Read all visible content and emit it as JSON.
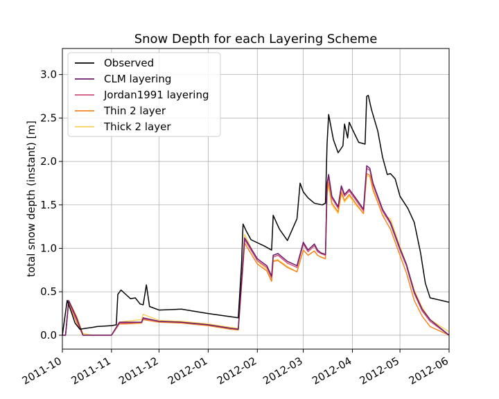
{
  "chart_data": {
    "type": "line",
    "title": "Snow Depth for each Layering Scheme",
    "xlabel": "",
    "ylabel": "total snow depth (instant) [m]",
    "xlim": [
      "2011-10-01",
      "2012-06-01"
    ],
    "ylim": [
      -0.16,
      3.3
    ],
    "x_ticks": [
      "2011-10",
      "2011-11",
      "2011-12",
      "2012-01",
      "2012-02",
      "2012-03",
      "2012-04",
      "2012-05",
      "2012-06"
    ],
    "y_ticks": [
      0.0,
      0.5,
      1.0,
      1.5,
      2.0,
      2.5,
      3.0
    ],
    "y_tick_labels": [
      "0.0",
      "0.5",
      "1.0",
      "1.5",
      "2.0",
      "2.5",
      "3.0"
    ],
    "grid": true,
    "legend_position": "upper-left",
    "series": [
      {
        "name": "Observed",
        "color": "#000000",
        "x": [
          "2011-10-01",
          "2011-10-04",
          "2011-10-07",
          "2011-10-09",
          "2011-10-12",
          "2011-10-16",
          "2011-10-20",
          "2011-10-23",
          "2011-11-01",
          "2011-11-04",
          "2011-11-05",
          "2011-11-07",
          "2011-11-10",
          "2011-11-13",
          "2011-11-16",
          "2011-11-19",
          "2011-11-21",
          "2011-11-23",
          "2011-11-25",
          "2011-12-01",
          "2011-12-15",
          "2012-01-01",
          "2012-01-20",
          "2012-01-22",
          "2012-01-23",
          "2012-01-25",
          "2012-01-28",
          "2012-02-05",
          "2012-02-10",
          "2012-02-11",
          "2012-02-13",
          "2012-02-15",
          "2012-02-20",
          "2012-02-26",
          "2012-02-28",
          "2012-03-01",
          "2012-03-04",
          "2012-03-08",
          "2012-03-13",
          "2012-03-15",
          "2012-03-16",
          "2012-03-17",
          "2012-03-20",
          "2012-03-23",
          "2012-03-26",
          "2012-03-27",
          "2012-03-29",
          "2012-03-30",
          "2012-04-01",
          "2012-04-05",
          "2012-04-09",
          "2012-04-10",
          "2012-04-11",
          "2012-04-13",
          "2012-04-17",
          "2012-04-20",
          "2012-04-23",
          "2012-04-25",
          "2012-04-28",
          "2012-05-01",
          "2012-05-06",
          "2012-05-10",
          "2012-05-14",
          "2012-05-17",
          "2012-05-20",
          "2012-06-01"
        ],
        "values": [
          0.0,
          0.4,
          0.25,
          0.14,
          0.07,
          0.08,
          0.09,
          0.1,
          0.11,
          0.12,
          0.47,
          0.52,
          0.47,
          0.42,
          0.43,
          0.36,
          0.35,
          0.58,
          0.33,
          0.29,
          0.3,
          0.25,
          0.2,
          0.8,
          1.28,
          1.2,
          1.1,
          1.03,
          0.98,
          1.38,
          1.3,
          1.22,
          1.09,
          1.34,
          1.75,
          1.65,
          1.58,
          1.52,
          1.5,
          1.52,
          2.2,
          2.54,
          2.25,
          2.1,
          2.18,
          2.43,
          2.27,
          2.45,
          2.37,
          2.22,
          2.2,
          2.75,
          2.76,
          2.6,
          2.35,
          2.05,
          1.85,
          1.86,
          1.8,
          1.6,
          1.46,
          1.3,
          0.95,
          0.6,
          0.43,
          0.38
        ]
      },
      {
        "name": "CLM layering",
        "color": "#6a1a6a",
        "x": [
          "2011-10-01",
          "2011-10-03",
          "2011-10-05",
          "2011-10-10",
          "2011-10-14",
          "2011-10-20",
          "2011-11-01",
          "2011-11-06",
          "2011-11-10",
          "2011-11-20",
          "2011-11-21",
          "2011-12-01",
          "2011-12-15",
          "2012-01-01",
          "2012-01-15",
          "2012-01-20",
          "2012-01-22",
          "2012-01-24",
          "2012-02-01",
          "2012-02-07",
          "2012-02-10",
          "2012-02-11",
          "2012-02-14",
          "2012-02-20",
          "2012-02-26",
          "2012-03-01",
          "2012-03-04",
          "2012-03-08",
          "2012-03-10",
          "2012-03-12",
          "2012-03-15",
          "2012-03-16",
          "2012-03-17",
          "2012-03-19",
          "2012-03-23",
          "2012-03-25",
          "2012-03-27",
          "2012-03-30",
          "2012-04-03",
          "2012-04-08",
          "2012-04-10",
          "2012-04-12",
          "2012-04-14",
          "2012-04-18",
          "2012-04-20",
          "2012-04-25",
          "2012-05-01",
          "2012-05-05",
          "2012-05-10",
          "2012-05-15",
          "2012-05-20",
          "2012-06-01"
        ],
        "values": [
          0.0,
          0.0,
          0.4,
          0.2,
          0.0,
          0.0,
          0.0,
          0.15,
          0.15,
          0.15,
          0.2,
          0.16,
          0.15,
          0.12,
          0.08,
          0.07,
          0.6,
          1.12,
          0.88,
          0.8,
          0.68,
          0.92,
          0.94,
          0.85,
          0.8,
          1.07,
          0.98,
          1.05,
          0.98,
          0.95,
          0.93,
          1.75,
          1.85,
          1.6,
          1.48,
          1.72,
          1.62,
          1.68,
          1.58,
          1.45,
          1.95,
          1.92,
          1.75,
          1.55,
          1.45,
          1.3,
          1.0,
          0.82,
          0.5,
          0.3,
          0.18,
          0.0
        ]
      },
      {
        "name": "Jordan1991 layering",
        "color": "#d1507a",
        "x": [
          "2011-10-01",
          "2011-10-03",
          "2011-10-05",
          "2011-10-10",
          "2011-10-14",
          "2011-10-20",
          "2011-11-01",
          "2011-11-06",
          "2011-11-10",
          "2011-11-20",
          "2011-11-21",
          "2011-12-01",
          "2011-12-15",
          "2012-01-01",
          "2012-01-15",
          "2012-01-20",
          "2012-01-22",
          "2012-01-24",
          "2012-02-01",
          "2012-02-07",
          "2012-02-10",
          "2012-02-11",
          "2012-02-14",
          "2012-02-20",
          "2012-02-26",
          "2012-03-01",
          "2012-03-04",
          "2012-03-08",
          "2012-03-10",
          "2012-03-12",
          "2012-03-15",
          "2012-03-16",
          "2012-03-17",
          "2012-03-19",
          "2012-03-23",
          "2012-03-25",
          "2012-03-27",
          "2012-03-30",
          "2012-04-03",
          "2012-04-08",
          "2012-04-10",
          "2012-04-12",
          "2012-04-14",
          "2012-04-18",
          "2012-04-20",
          "2012-04-25",
          "2012-05-01",
          "2012-05-05",
          "2012-05-10",
          "2012-05-15",
          "2012-05-20",
          "2012-06-01"
        ],
        "values": [
          0.0,
          0.0,
          0.39,
          0.18,
          0.0,
          0.0,
          0.0,
          0.14,
          0.14,
          0.15,
          0.19,
          0.16,
          0.15,
          0.12,
          0.08,
          0.07,
          0.58,
          1.1,
          0.86,
          0.78,
          0.66,
          0.9,
          0.92,
          0.83,
          0.78,
          1.05,
          0.96,
          1.03,
          0.96,
          0.94,
          0.92,
          1.72,
          1.82,
          1.58,
          1.46,
          1.7,
          1.6,
          1.66,
          1.56,
          1.43,
          1.92,
          1.9,
          1.73,
          1.53,
          1.43,
          1.28,
          0.98,
          0.8,
          0.48,
          0.28,
          0.16,
          0.0
        ]
      },
      {
        "name": "Thin 2 layer",
        "color": "#f28522",
        "x": [
          "2011-10-01",
          "2011-10-03",
          "2011-10-05",
          "2011-10-10",
          "2011-10-14",
          "2011-10-20",
          "2011-11-01",
          "2011-11-06",
          "2011-11-10",
          "2011-11-20",
          "2011-11-21",
          "2011-12-01",
          "2011-12-15",
          "2012-01-01",
          "2012-01-15",
          "2012-01-20",
          "2012-01-22",
          "2012-01-24",
          "2012-02-01",
          "2012-02-07",
          "2012-02-10",
          "2012-02-11",
          "2012-02-14",
          "2012-02-20",
          "2012-02-26",
          "2012-03-01",
          "2012-03-04",
          "2012-03-08",
          "2012-03-10",
          "2012-03-12",
          "2012-03-15",
          "2012-03-16",
          "2012-03-17",
          "2012-03-19",
          "2012-03-23",
          "2012-03-25",
          "2012-03-27",
          "2012-03-30",
          "2012-04-03",
          "2012-04-08",
          "2012-04-10",
          "2012-04-12",
          "2012-04-14",
          "2012-04-18",
          "2012-04-20",
          "2012-04-25",
          "2012-05-01",
          "2012-05-05",
          "2012-05-10",
          "2012-05-15",
          "2012-05-20",
          "2012-06-01"
        ],
        "values": [
          0.0,
          0.0,
          0.38,
          0.15,
          0.0,
          0.0,
          0.0,
          0.13,
          0.13,
          0.14,
          0.18,
          0.15,
          0.14,
          0.11,
          0.07,
          0.06,
          0.55,
          1.06,
          0.82,
          0.74,
          0.62,
          0.85,
          0.86,
          0.78,
          0.73,
          0.98,
          0.92,
          0.97,
          0.92,
          0.9,
          0.88,
          1.65,
          1.76,
          1.52,
          1.42,
          1.65,
          1.55,
          1.62,
          1.52,
          1.4,
          1.86,
          1.84,
          1.68,
          1.48,
          1.38,
          1.22,
          0.92,
          0.72,
          0.4,
          0.22,
          0.1,
          0.0
        ]
      },
      {
        "name": "Thick 2 layer",
        "color": "#f9d35c",
        "x": [
          "2011-10-01",
          "2011-10-03",
          "2011-10-05",
          "2011-10-10",
          "2011-10-14",
          "2011-10-20",
          "2011-11-01",
          "2011-11-06",
          "2011-11-10",
          "2011-11-20",
          "2011-11-21",
          "2011-12-01",
          "2011-12-15",
          "2012-01-01",
          "2012-01-15",
          "2012-01-20",
          "2012-01-22",
          "2012-01-24",
          "2012-02-01",
          "2012-02-07",
          "2012-02-10",
          "2012-02-11",
          "2012-02-14",
          "2012-02-20",
          "2012-02-26",
          "2012-03-01",
          "2012-03-04",
          "2012-03-08",
          "2012-03-10",
          "2012-03-12",
          "2012-03-15",
          "2012-03-16",
          "2012-03-17",
          "2012-03-19",
          "2012-03-23",
          "2012-03-25",
          "2012-03-27",
          "2012-03-30",
          "2012-04-03",
          "2012-04-08",
          "2012-04-10",
          "2012-04-12",
          "2012-04-14",
          "2012-04-18",
          "2012-04-20",
          "2012-04-25",
          "2012-05-01",
          "2012-05-05",
          "2012-05-10",
          "2012-05-15",
          "2012-05-20",
          "2012-06-01"
        ],
        "values": [
          0.0,
          0.0,
          0.4,
          0.22,
          0.02,
          0.0,
          0.0,
          0.15,
          0.16,
          0.18,
          0.24,
          0.17,
          0.16,
          0.13,
          0.09,
          0.08,
          0.6,
          1.16,
          0.85,
          0.76,
          0.63,
          0.86,
          0.87,
          0.79,
          0.73,
          0.98,
          0.92,
          0.97,
          0.92,
          0.9,
          0.88,
          1.62,
          1.72,
          1.5,
          1.4,
          1.62,
          1.53,
          1.6,
          1.5,
          1.4,
          1.84,
          1.82,
          1.66,
          1.48,
          1.38,
          1.34,
          1.02,
          0.82,
          0.52,
          0.32,
          0.18,
          0.04
        ]
      }
    ]
  }
}
